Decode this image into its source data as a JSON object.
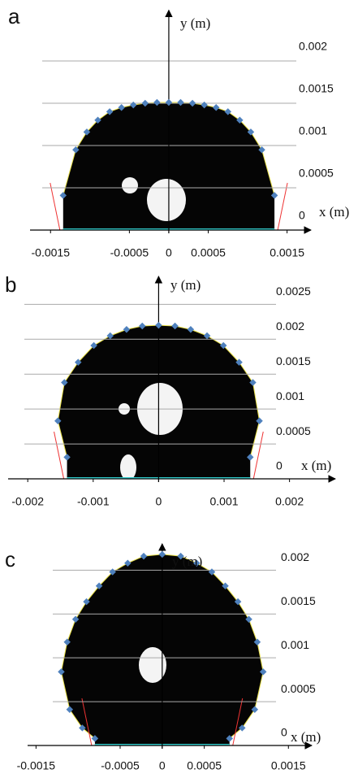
{
  "chart_data": [
    {
      "type": "scatter",
      "label": "a",
      "xlabel": "x (m)",
      "ylabel": "y (m)",
      "color": "#4f81bd",
      "grid": true,
      "x": [
        -0.00134,
        -0.00118,
        -0.00104,
        -0.0009,
        -0.00075,
        -0.0006,
        -0.00045,
        -0.0003,
        -0.00015,
        0,
        0.00015,
        0.0003,
        0.00045,
        0.0006,
        0.00075,
        0.0009,
        0.00104,
        0.00118,
        0.00134
      ],
      "y": [
        0.00041,
        0.00095,
        0.00116,
        0.0013,
        0.0014,
        0.00145,
        0.00148,
        0.0015,
        0.00151,
        0.00151,
        0.00151,
        0.0015,
        0.00148,
        0.00145,
        0.0014,
        0.0013,
        0.00116,
        0.00095,
        0.00041
      ],
      "xlim": [
        -0.00176,
        0.00172
      ],
      "ylim": [
        0,
        0.0026
      ],
      "xticks": [
        -0.0015,
        -0.0005,
        0,
        0.0005,
        0.0015
      ],
      "yticks": [
        0,
        0.0005,
        0.001,
        0.0015,
        0.002
      ]
    },
    {
      "type": "scatter",
      "label": "b",
      "xlabel": "x (m)",
      "ylabel": "y (m)",
      "color": "#4f81bd",
      "grid": true,
      "x": [
        -0.0014,
        -0.00154,
        -0.00144,
        -0.00123,
        -0.00099,
        -0.00074,
        -0.00049,
        -0.00025,
        0,
        0.00025,
        0.00049,
        0.00074,
        0.00099,
        0.00123,
        0.00144,
        0.00154,
        0.0014
      ],
      "y": [
        0.00031,
        0.00083,
        0.00138,
        0.00167,
        0.00191,
        0.00205,
        0.00214,
        0.00219,
        0.0022,
        0.00219,
        0.00214,
        0.00205,
        0.00191,
        0.00167,
        0.00138,
        0.00083,
        0.00031
      ],
      "xlim": [
        -0.0023,
        0.0026
      ],
      "ylim": [
        0,
        0.0029
      ],
      "xticks": [
        -0.002,
        -0.001,
        0,
        0.001,
        0.002
      ],
      "yticks": [
        0,
        0.0005,
        0.001,
        0.0015,
        0.002,
        0.0025
      ]
    },
    {
      "type": "scatter",
      "label": "c",
      "xlabel": "x (m)",
      "ylabel": "y (m)",
      "color": "#4f81bd",
      "grid": true,
      "x": [
        -0.0008,
        -0.00095,
        -0.0011,
        -0.0012,
        -0.00113,
        -0.00103,
        -0.0009,
        -0.00075,
        -0.00059,
        -0.00041,
        -0.00022,
        0,
        0.00022,
        0.00041,
        0.00059,
        0.00075,
        0.0009,
        0.00103,
        0.00113,
        0.0012,
        0.0011,
        0.00095,
        0.0008
      ],
      "y": [
        8e-05,
        0.0002,
        0.00041,
        0.00084,
        0.00118,
        0.00144,
        0.00164,
        0.00182,
        0.00198,
        0.00208,
        0.00216,
        0.00218,
        0.00216,
        0.00208,
        0.00198,
        0.00182,
        0.00164,
        0.00144,
        0.00118,
        0.00084,
        0.00041,
        0.0002,
        8e-05
      ],
      "xlim": [
        -0.0016,
        0.0017
      ],
      "ylim": [
        0,
        0.0023
      ],
      "xticks": [
        -0.0015,
        -0.0005,
        0,
        0.0005,
        0.0015
      ],
      "yticks": [
        0,
        0.0005,
        0.001,
        0.0015,
        0.002
      ]
    }
  ]
}
